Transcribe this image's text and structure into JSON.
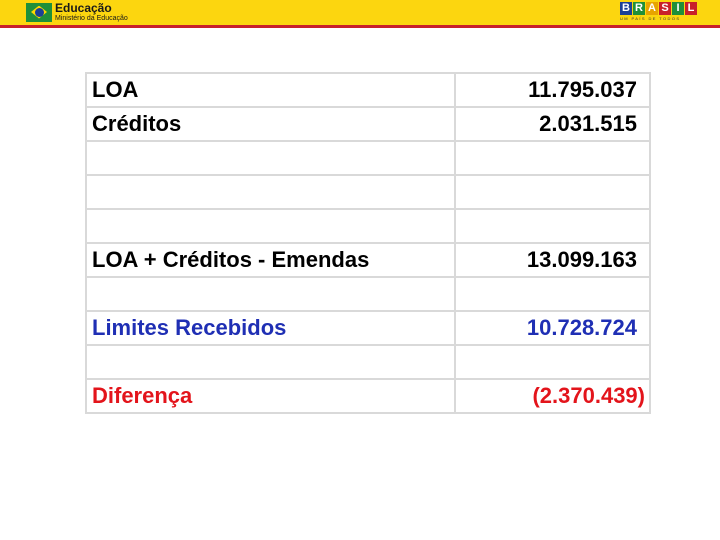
{
  "header": {
    "title": "Educação",
    "subtitle": "Ministério da Educação",
    "brand_letters": [
      "B",
      "R",
      "A",
      "S",
      "I",
      "L"
    ],
    "brand_tagline": "UM PAÍS DE TODOS",
    "colors": {
      "bar": "#fcd60f",
      "line": "#c8202a"
    }
  },
  "table": {
    "rows": [
      {
        "label": "LOA",
        "value": "11.795.037",
        "style": "normal"
      },
      {
        "label": "Créditos",
        "value": "2.031.515",
        "style": "normal"
      },
      {
        "label": "",
        "value": "",
        "style": "normal"
      },
      {
        "label": "",
        "value": "",
        "style": "normal"
      },
      {
        "label": "",
        "value": "",
        "style": "normal"
      },
      {
        "label": "LOA + Créditos - Emendas",
        "value": "13.099.163",
        "style": "normal"
      },
      {
        "label": "",
        "value": "",
        "style": "normal"
      },
      {
        "label": "Limites Recebidos",
        "value": "10.728.724",
        "style": "blue"
      },
      {
        "label": "",
        "value": "",
        "style": "normal"
      },
      {
        "label": "Diferença",
        "value": "(2.370.439)",
        "style": "red"
      }
    ],
    "colors": {
      "blue": "#1f2fb4",
      "red": "#e3141b",
      "border": "#d9d9d9"
    }
  }
}
